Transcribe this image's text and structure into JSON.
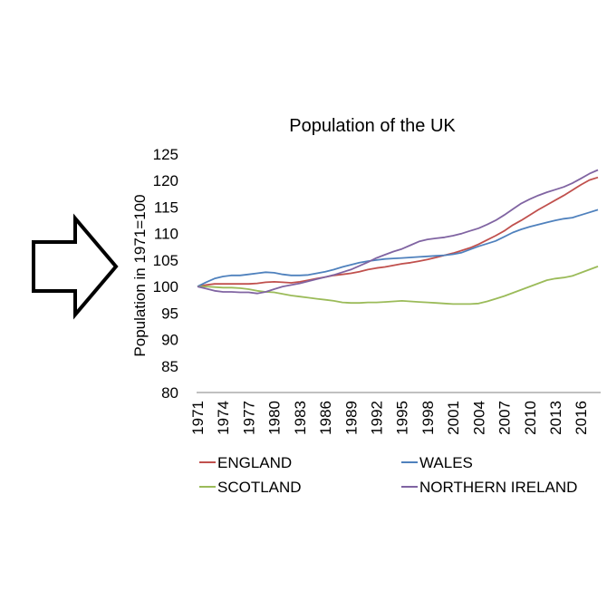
{
  "decor": {
    "arrow_icon": "right-arrow-outline-icon"
  },
  "chart_data": {
    "type": "line",
    "title": "Population of the UK",
    "xlabel": "",
    "ylabel": "Population in 1971=100",
    "ylim": [
      80,
      125
    ],
    "yticks": [
      "125",
      "120",
      "115",
      "110",
      "105",
      "100",
      "95",
      "90",
      "85",
      "80"
    ],
    "y_tick_values": [
      125,
      120,
      115,
      110,
      105,
      100,
      95,
      90,
      85,
      80
    ],
    "xlim": [
      1971,
      2018
    ],
    "xticks": [
      "1971",
      "1974",
      "1977",
      "1980",
      "1983",
      "1986",
      "1989",
      "1992",
      "1995",
      "1998",
      "2001",
      "2004",
      "2007",
      "2010",
      "2013",
      "2016"
    ],
    "x_tick_values": [
      1971,
      1974,
      1977,
      1980,
      1983,
      1986,
      1989,
      1992,
      1995,
      1998,
      2001,
      2004,
      2007,
      2010,
      2013,
      2016
    ],
    "grid": false,
    "legend_position": "bottom",
    "x": [
      1971,
      1972,
      1973,
      1974,
      1975,
      1976,
      1977,
      1978,
      1979,
      1980,
      1981,
      1982,
      1983,
      1984,
      1985,
      1986,
      1987,
      1988,
      1989,
      1990,
      1991,
      1992,
      1993,
      1994,
      1995,
      1996,
      1997,
      1998,
      1999,
      2000,
      2001,
      2002,
      2003,
      2004,
      2005,
      2006,
      2007,
      2008,
      2009,
      2010,
      2011,
      2012,
      2013,
      2014,
      2015,
      2016,
      2017,
      2018
    ],
    "series": [
      {
        "name": "ENGLAND",
        "color": "#c0504d",
        "values": [
          100,
          100.3,
          100.5,
          100.5,
          100.5,
          100.5,
          100.5,
          100.6,
          100.8,
          100.9,
          100.8,
          100.7,
          100.9,
          101.2,
          101.5,
          101.8,
          102.1,
          102.3,
          102.5,
          102.8,
          103.2,
          103.5,
          103.7,
          104.0,
          104.3,
          104.5,
          104.8,
          105.1,
          105.5,
          105.9,
          106.3,
          106.8,
          107.3,
          108.0,
          108.8,
          109.6,
          110.5,
          111.6,
          112.5,
          113.5,
          114.5,
          115.4,
          116.3,
          117.2,
          118.2,
          119.2,
          120.1,
          120.6
        ]
      },
      {
        "name": "WALES",
        "color": "#4f81bd",
        "values": [
          100,
          100.8,
          101.5,
          101.9,
          102.1,
          102.1,
          102.3,
          102.5,
          102.7,
          102.6,
          102.3,
          102.1,
          102.1,
          102.2,
          102.5,
          102.8,
          103.2,
          103.7,
          104.1,
          104.5,
          104.8,
          105.0,
          105.2,
          105.3,
          105.4,
          105.5,
          105.6,
          105.7,
          105.8,
          105.9,
          106.1,
          106.4,
          107.0,
          107.6,
          108.1,
          108.6,
          109.4,
          110.2,
          110.8,
          111.3,
          111.7,
          112.1,
          112.5,
          112.8,
          113.0,
          113.5,
          114.0,
          114.5
        ]
      },
      {
        "name": "SCOTLAND",
        "color": "#9bbb59",
        "values": [
          100,
          100.0,
          99.9,
          99.8,
          99.8,
          99.7,
          99.5,
          99.2,
          99.0,
          98.9,
          98.6,
          98.3,
          98.1,
          97.9,
          97.7,
          97.5,
          97.3,
          97.0,
          96.9,
          96.9,
          97.0,
          97.0,
          97.1,
          97.2,
          97.3,
          97.2,
          97.1,
          97.0,
          96.9,
          96.8,
          96.7,
          96.7,
          96.7,
          96.8,
          97.2,
          97.7,
          98.2,
          98.8,
          99.4,
          100.0,
          100.6,
          101.2,
          101.5,
          101.7,
          102.0,
          102.6,
          103.2,
          103.8
        ]
      },
      {
        "name": "NORTHERN IRELAND",
        "color": "#8064a2",
        "values": [
          100,
          99.6,
          99.2,
          99.0,
          99.0,
          98.9,
          98.9,
          98.7,
          99.0,
          99.5,
          100.0,
          100.3,
          100.6,
          101.0,
          101.4,
          101.8,
          102.2,
          102.7,
          103.2,
          103.9,
          104.6,
          105.4,
          106.0,
          106.6,
          107.1,
          107.8,
          108.5,
          108.9,
          109.1,
          109.3,
          109.6,
          110.0,
          110.5,
          111.0,
          111.7,
          112.5,
          113.5,
          114.6,
          115.7,
          116.5,
          117.2,
          117.8,
          118.3,
          118.8,
          119.5,
          120.4,
          121.3,
          122.0
        ]
      }
    ]
  }
}
